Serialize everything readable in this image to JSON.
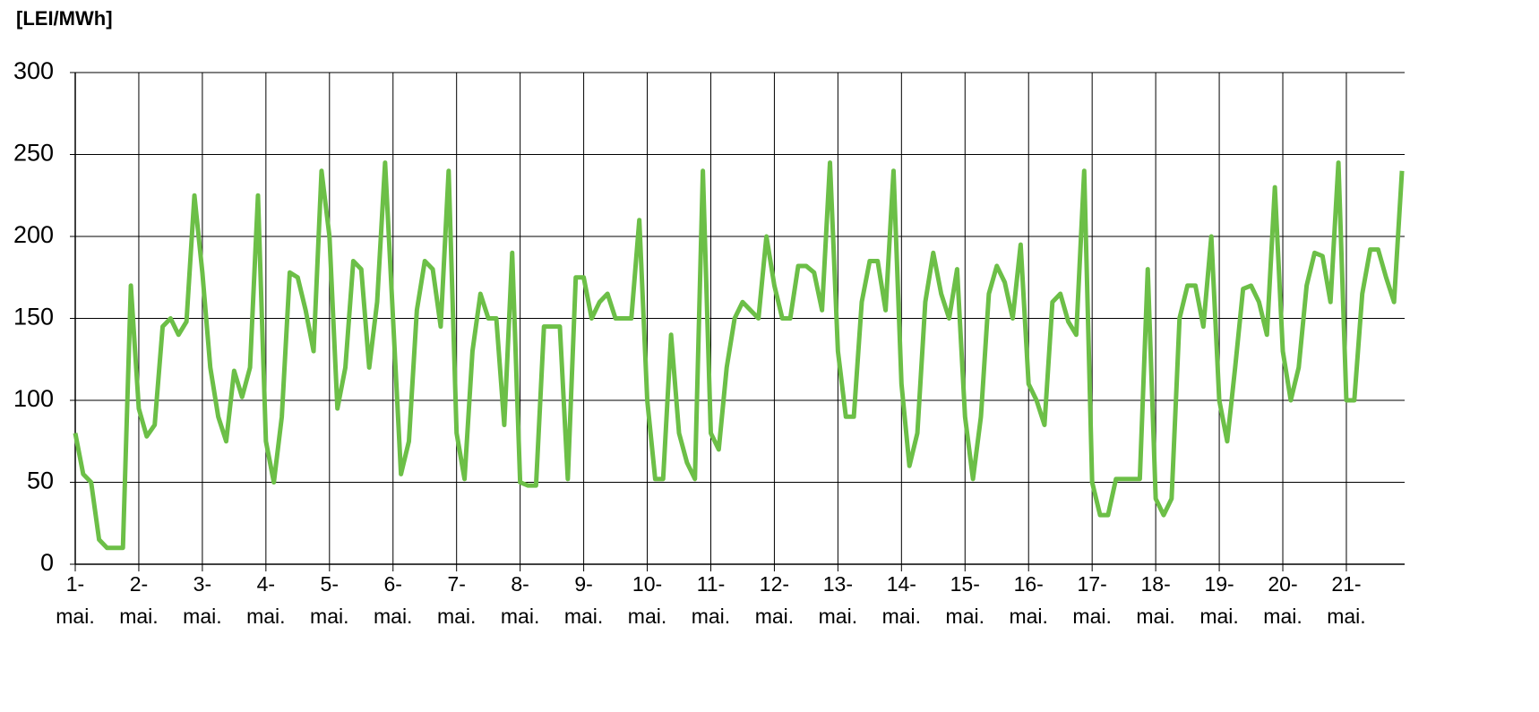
{
  "chart_data": {
    "type": "line",
    "y_label": "[LEI/MWh]",
    "ylim": [
      0,
      300
    ],
    "yticks": [
      0,
      50,
      100,
      150,
      200,
      250,
      300
    ],
    "xlim": [
      0,
      502
    ],
    "xticks": [
      {
        "value": 0,
        "label": "1- mai."
      },
      {
        "value": 24,
        "label": "2- mai."
      },
      {
        "value": 48,
        "label": "3- mai."
      },
      {
        "value": 72,
        "label": "4- mai."
      },
      {
        "value": 96,
        "label": "5- mai."
      },
      {
        "value": 120,
        "label": "6- mai."
      },
      {
        "value": 144,
        "label": "7- mai."
      },
      {
        "value": 168,
        "label": "8- mai."
      },
      {
        "value": 192,
        "label": "9- mai."
      },
      {
        "value": 216,
        "label": "10- mai."
      },
      {
        "value": 240,
        "label": "11- mai."
      },
      {
        "value": 264,
        "label": "12- mai."
      },
      {
        "value": 288,
        "label": "13- mai."
      },
      {
        "value": 312,
        "label": "14- mai."
      },
      {
        "value": 336,
        "label": "15- mai."
      },
      {
        "value": 360,
        "label": "16- mai."
      },
      {
        "value": 384,
        "label": "17- mai."
      },
      {
        "value": 408,
        "label": "18- mai."
      },
      {
        "value": 432,
        "label": "19- mai."
      },
      {
        "value": 456,
        "label": "20- mai."
      },
      {
        "value": 480,
        "label": "21- mai."
      }
    ],
    "grid": true,
    "x": [
      0,
      3,
      6,
      9,
      12,
      15,
      18,
      21,
      24,
      27,
      30,
      33,
      36,
      39,
      42,
      45,
      48,
      51,
      54,
      57,
      60,
      63,
      66,
      69,
      72,
      75,
      78,
      81,
      84,
      87,
      90,
      93,
      96,
      99,
      102,
      105,
      108,
      111,
      114,
      117,
      120,
      123,
      126,
      129,
      132,
      135,
      138,
      141,
      144,
      147,
      150,
      153,
      156,
      159,
      162,
      165,
      168,
      171,
      174,
      177,
      180,
      183,
      186,
      189,
      192,
      195,
      198,
      201,
      204,
      207,
      210,
      213,
      216,
      219,
      222,
      225,
      228,
      231,
      234,
      237,
      240,
      243,
      246,
      249,
      252,
      255,
      258,
      261,
      264,
      267,
      270,
      273,
      276,
      279,
      282,
      285,
      288,
      291,
      294,
      297,
      300,
      303,
      306,
      309,
      312,
      315,
      318,
      321,
      324,
      327,
      330,
      333,
      336,
      339,
      342,
      345,
      348,
      351,
      354,
      357,
      360,
      363,
      366,
      369,
      372,
      375,
      378,
      381,
      384,
      387,
      390,
      393,
      396,
      399,
      402,
      405,
      408,
      411,
      414,
      417,
      420,
      423,
      426,
      429,
      432,
      435,
      438,
      441,
      444,
      447,
      450,
      453,
      456,
      459,
      462,
      465,
      468,
      471,
      474,
      477,
      480,
      483,
      486,
      489,
      492,
      495,
      498,
      501
    ],
    "series": [
      {
        "color": "#6cbf47",
        "values": [
          80,
          55,
          50,
          15,
          10,
          10,
          10,
          170,
          95,
          78,
          85,
          145,
          150,
          140,
          148,
          225,
          178,
          120,
          90,
          75,
          118,
          102,
          120,
          225,
          75,
          50,
          90,
          178,
          175,
          155,
          130,
          240,
          200,
          95,
          120,
          185,
          180,
          120,
          160,
          245,
          150,
          55,
          75,
          155,
          185,
          180,
          145,
          240,
          80,
          52,
          130,
          165,
          150,
          150,
          85,
          190,
          50,
          48,
          48,
          145,
          145,
          145,
          52,
          175,
          175,
          150,
          160,
          165,
          150,
          150,
          150,
          210,
          100,
          52,
          52,
          140,
          80,
          62,
          52,
          240,
          80,
          70,
          120,
          150,
          160,
          155,
          150,
          200,
          170,
          150,
          150,
          182,
          182,
          178,
          155,
          245,
          130,
          90,
          90,
          160,
          185,
          185,
          155,
          240,
          110,
          60,
          80,
          160,
          190,
          165,
          150,
          180,
          90,
          52,
          90,
          165,
          182,
          172,
          150,
          195,
          110,
          100,
          85,
          160,
          165,
          148,
          140,
          240,
          50,
          30,
          30,
          52,
          52,
          52,
          52,
          180,
          40,
          30,
          40,
          150,
          170,
          170,
          145,
          200,
          100,
          75,
          120,
          168,
          170,
          160,
          140,
          230,
          130,
          100,
          120,
          170,
          190,
          188,
          160,
          245,
          100,
          100,
          165,
          192,
          192,
          175,
          160,
          240
        ]
      }
    ]
  }
}
